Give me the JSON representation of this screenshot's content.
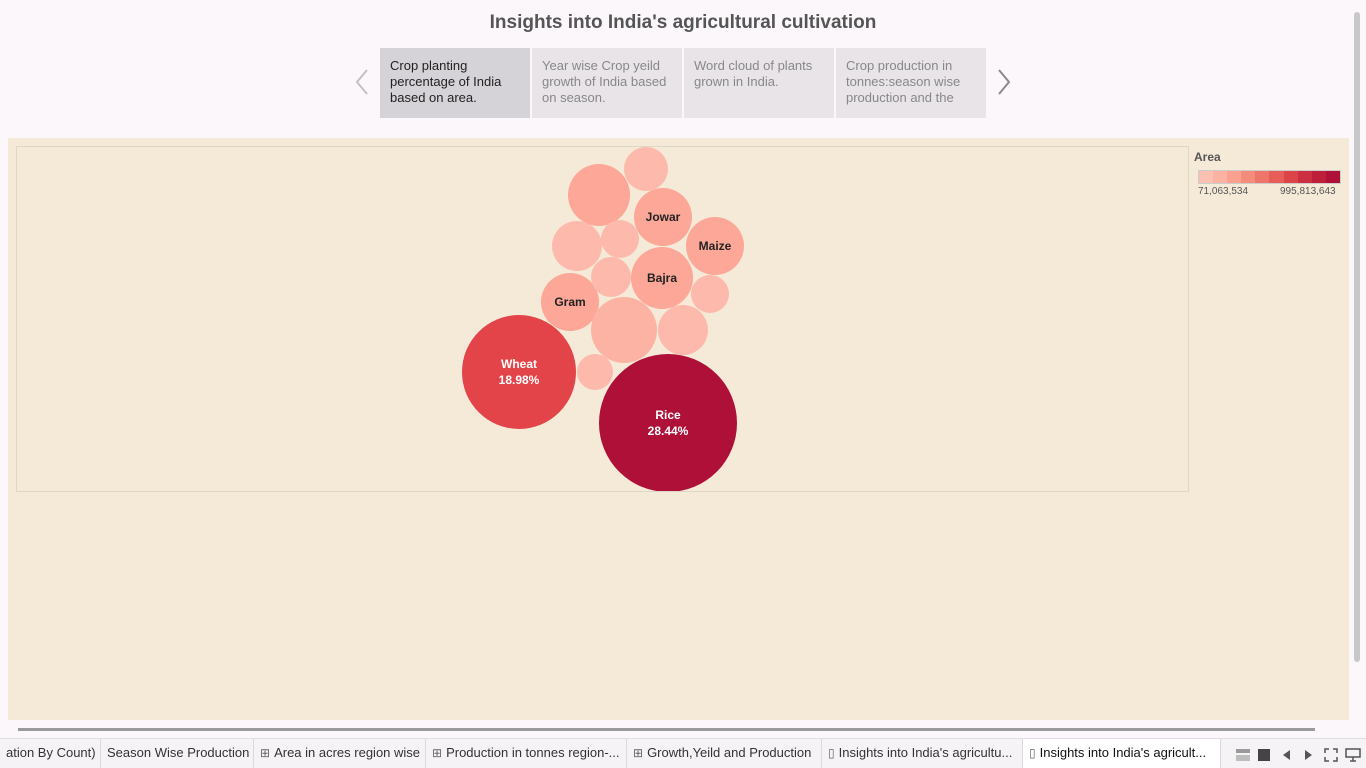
{
  "story": {
    "title": "Insights into India's agricultural cultivation",
    "points": [
      {
        "label": "Crop planting percentage of India based on area."
      },
      {
        "label": "Year wise Crop yeild growth of India based on season."
      },
      {
        "label": "Word cloud of plants grown in India."
      },
      {
        "label": "Crop production in tonnes:season wise production and the"
      }
    ]
  },
  "legend": {
    "title": "Area",
    "min_label": "71,063,534",
    "max_label": "995,813,643",
    "colors": [
      "#fcc0b2",
      "#fbb2a3",
      "#f9a08f",
      "#f48c7c",
      "#ee7569",
      "#e75d57",
      "#dc4547",
      "#cc2f3f",
      "#bf1e3a",
      "#ae1038"
    ]
  },
  "chart_data": {
    "type": "bubble",
    "measure": "Area",
    "bubbles": [
      {
        "label": "Rice",
        "pct": "28.44%",
        "color": "#ae1038"
      },
      {
        "label": "Wheat",
        "pct": "18.98%",
        "color": "#e3444a"
      },
      {
        "label": "Jowar",
        "pct": "",
        "color": "#fca797"
      },
      {
        "label": "Maize",
        "pct": "",
        "color": "#fca797"
      },
      {
        "label": "Bajra",
        "pct": "",
        "color": "#fca797"
      },
      {
        "label": "Gram",
        "pct": "",
        "color": "#fca797"
      },
      {
        "label": "",
        "pct": "",
        "color": "#fca797"
      },
      {
        "label": "",
        "pct": "",
        "color": "#fdb9ab"
      },
      {
        "label": "",
        "pct": "",
        "color": "#fcb3a4"
      },
      {
        "label": "",
        "pct": "",
        "color": "#fdb9ab"
      },
      {
        "label": "",
        "pct": "",
        "color": "#fdb9ab"
      },
      {
        "label": "",
        "pct": "",
        "color": "#fdb9ab"
      },
      {
        "label": "",
        "pct": "",
        "color": "#fdb9ab"
      },
      {
        "label": "",
        "pct": "",
        "color": "#fdb9ab"
      },
      {
        "label": "",
        "pct": "",
        "color": "#fdb9ab"
      }
    ]
  },
  "tabs": [
    {
      "label": "ation By Count)",
      "icon": "",
      "active": false
    },
    {
      "label": "Season Wise Production",
      "icon": "",
      "active": false
    },
    {
      "label": "Area in acres region wise",
      "icon": "dashboard-icon",
      "active": false
    },
    {
      "label": "Production in tonnes region-...",
      "icon": "dashboard-icon",
      "active": false
    },
    {
      "label": "Growth,Yeild and Production",
      "icon": "dashboard-icon",
      "active": false
    },
    {
      "label": "Insights into India's agricultu...",
      "icon": "story-icon",
      "active": false
    },
    {
      "label": "Insights into India's agricult...",
      "icon": "story-icon",
      "active": true
    }
  ]
}
